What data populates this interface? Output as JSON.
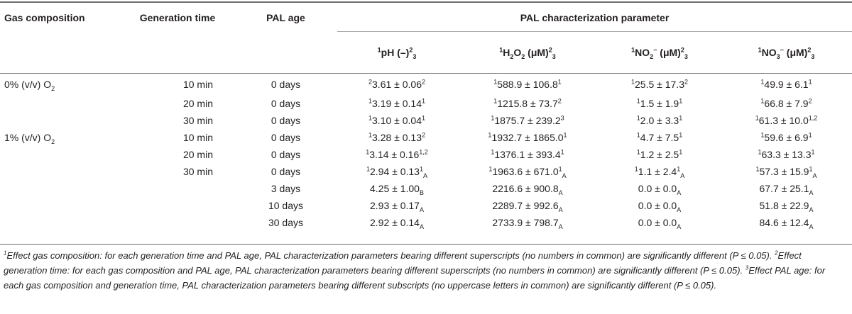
{
  "headers": {
    "gas_composition": "Gas composition",
    "generation_time": "Generation time",
    "pal_age": "PAL age",
    "pal_param": "PAL characterization parameter",
    "pH": {
      "pre": "1",
      "main": "pH (–)",
      "sup": "2",
      "sub": "3"
    },
    "H2O2": {
      "pre": "1",
      "main_a": "H",
      "sub_a": "2",
      "main_b": "O",
      "sub_b": "2",
      "main_c": " (μM)",
      "sup": "2",
      "sub": "3"
    },
    "NO2": {
      "pre": "1",
      "main_a": "NO",
      "sub_a": "2",
      "sup_a": "−",
      "main_b": " (μM)",
      "sup": "2",
      "sub": "3"
    },
    "NO3": {
      "pre": "1",
      "main_a": "NO",
      "sub_a": "3",
      "sup_a": "−",
      "main_b": " (μM)",
      "sup": "2",
      "sub": "3"
    }
  },
  "rows": [
    {
      "gas": "0% (v/v) O",
      "gas_sub": "2",
      "time": "10 min",
      "age": "0 days",
      "pH": {
        "pre": "2",
        "v": "3.61 ± 0.06",
        "sup": "2",
        "sub": ""
      },
      "h2o2": {
        "pre": "1",
        "v": "588.9 ± 106.8",
        "sup": "1",
        "sub": ""
      },
      "no2": {
        "pre": "1",
        "v": "25.5 ± 17.3",
        "sup": "2",
        "sub": ""
      },
      "no3": {
        "pre": "1",
        "v": "49.9 ± 6.1",
        "sup": "1",
        "sub": ""
      }
    },
    {
      "gas": "",
      "gas_sub": "",
      "time": "20 min",
      "age": "0 days",
      "pH": {
        "pre": "1",
        "v": "3.19 ± 0.14",
        "sup": "1",
        "sub": ""
      },
      "h2o2": {
        "pre": "1",
        "v": "1215.8 ± 73.7",
        "sup": "2",
        "sub": ""
      },
      "no2": {
        "pre": "1",
        "v": "1.5 ± 1.9",
        "sup": "1",
        "sub": ""
      },
      "no3": {
        "pre": "1",
        "v": "66.8 ± 7.9",
        "sup": "2",
        "sub": ""
      }
    },
    {
      "gas": "",
      "gas_sub": "",
      "time": "30 min",
      "age": "0 days",
      "pH": {
        "pre": "1",
        "v": "3.10 ± 0.04",
        "sup": "1",
        "sub": ""
      },
      "h2o2": {
        "pre": "1",
        "v": "1875.7 ± 239.2",
        "sup": "3",
        "sub": ""
      },
      "no2": {
        "pre": "1",
        "v": "2.0 ± 3.3",
        "sup": "1",
        "sub": ""
      },
      "no3": {
        "pre": "1",
        "v": "61.3 ± 10.0",
        "sup": "1,2",
        "sub": ""
      }
    },
    {
      "gas": "1% (v/v) O",
      "gas_sub": "2",
      "time": "10 min",
      "age": "0 days",
      "pH": {
        "pre": "1",
        "v": "3.28 ± 0.13",
        "sup": "2",
        "sub": ""
      },
      "h2o2": {
        "pre": "1",
        "v": "1932.7 ± 1865.0",
        "sup": "1",
        "sub": ""
      },
      "no2": {
        "pre": "1",
        "v": "4.7 ± 7.5",
        "sup": "1",
        "sub": ""
      },
      "no3": {
        "pre": "1",
        "v": "59.6 ± 6.9",
        "sup": "1",
        "sub": ""
      }
    },
    {
      "gas": "",
      "gas_sub": "",
      "time": "20 min",
      "age": "0 days",
      "pH": {
        "pre": "1",
        "v": "3.14 ± 0.16",
        "sup": "1,2",
        "sub": ""
      },
      "h2o2": {
        "pre": "1",
        "v": "1376.1 ± 393.4",
        "sup": "1",
        "sub": ""
      },
      "no2": {
        "pre": "1",
        "v": "1.2 ± 2.5",
        "sup": "1",
        "sub": ""
      },
      "no3": {
        "pre": "1",
        "v": "63.3 ± 13.3",
        "sup": "1",
        "sub": ""
      }
    },
    {
      "gas": "",
      "gas_sub": "",
      "time": "30 min",
      "age": "0 days",
      "pH": {
        "pre": "1",
        "v": "2.94 ± 0.13",
        "sup": "1",
        "sub": "A"
      },
      "h2o2": {
        "pre": "1",
        "v": "1963.6 ± 671.0",
        "sup": "1",
        "sub": "A"
      },
      "no2": {
        "pre": "1",
        "v": "1.1 ± 2.4",
        "sup": "1",
        "sub": "A"
      },
      "no3": {
        "pre": "1",
        "v": "57.3 ± 15.9",
        "sup": "1",
        "sub": "A"
      }
    },
    {
      "gas": "",
      "gas_sub": "",
      "time": "",
      "age": "3 days",
      "pH": {
        "pre": "",
        "v": "4.25 ± 1.00",
        "sup": "",
        "sub": "B"
      },
      "h2o2": {
        "pre": "",
        "v": "2216.6 ± 900.8",
        "sup": "",
        "sub": "A"
      },
      "no2": {
        "pre": "",
        "v": "0.0 ± 0.0",
        "sup": "",
        "sub": "A"
      },
      "no3": {
        "pre": "",
        "v": "67.7 ± 25.1",
        "sup": "",
        "sub": "A"
      }
    },
    {
      "gas": "",
      "gas_sub": "",
      "time": "",
      "age": "10 days",
      "pH": {
        "pre": "",
        "v": "2.93 ± 0.17",
        "sup": "",
        "sub": "A"
      },
      "h2o2": {
        "pre": "",
        "v": "2289.7 ± 992.6",
        "sup": "",
        "sub": "A"
      },
      "no2": {
        "pre": "",
        "v": "0.0 ± 0.0",
        "sup": "",
        "sub": "A"
      },
      "no3": {
        "pre": "",
        "v": "51.8 ± 22.9",
        "sup": "",
        "sub": "A"
      }
    },
    {
      "gas": "",
      "gas_sub": "",
      "time": "",
      "age": "30 days",
      "pH": {
        "pre": "",
        "v": "2.92 ± 0.14",
        "sup": "",
        "sub": "A"
      },
      "h2o2": {
        "pre": "",
        "v": "2733.9 ± 798.7",
        "sup": "",
        "sub": "A"
      },
      "no2": {
        "pre": "",
        "v": "0.0 ± 0.0",
        "sup": "",
        "sub": "A"
      },
      "no3": {
        "pre": "",
        "v": "84.6 ± 12.4",
        "sup": "",
        "sub": "A"
      }
    }
  ],
  "footnotes": [
    {
      "sup": "1",
      "text": "Effect gas composition: for each generation time and PAL age, PAL characterization parameters bearing different superscripts (no numbers in common) are significantly different (P ≤ 0.05). "
    },
    {
      "sup": "2",
      "text": "Effect generation time: for each gas composition and PAL age, PAL characterization parameters bearing different superscripts (no numbers in common) are significantly different (P ≤ 0.05). "
    },
    {
      "sup": "3",
      "text": "Effect PAL age: for each gas composition and generation time, PAL characterization parameters bearing different subscripts (no uppercase letters in common) are significantly different (P ≤ 0.05)."
    }
  ]
}
